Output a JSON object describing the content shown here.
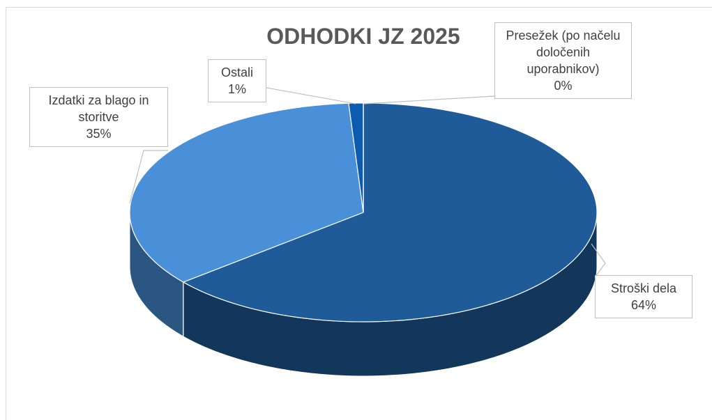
{
  "chart_data": {
    "type": "pie",
    "title": "ODHODKI JZ 2025",
    "categories": [
      "Stroški dela",
      "Izdatki za blago in storitve",
      "Ostali",
      "Presežek (po načelu določenih uporabnikov)"
    ],
    "values": [
      64,
      35,
      1,
      0
    ],
    "value_labels": [
      "64%",
      "35%",
      "1%",
      "0%"
    ],
    "colors": [
      "#1f5b98",
      "#4a90d9",
      "#0b5cb0",
      "#5a9bd5"
    ]
  }
}
